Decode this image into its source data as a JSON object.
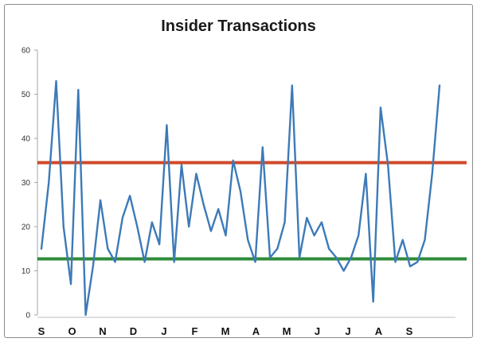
{
  "chart_data": {
    "type": "line",
    "title": "Insider Transactions",
    "xlabel": "",
    "ylabel": "",
    "ylim": [
      0,
      60
    ],
    "yticks": [
      "0",
      "10",
      "20",
      "30",
      "40",
      "50",
      "60"
    ],
    "month_labels": [
      "S",
      "O",
      "N",
      "D",
      "J",
      "F",
      "M",
      "A",
      "M",
      "J",
      "J",
      "A",
      "S"
    ],
    "series": [
      {
        "color": "#3d7ab8",
        "values": [
          15,
          30,
          53,
          20,
          7,
          51,
          0,
          11,
          26,
          15,
          12,
          22,
          27,
          20,
          12,
          21,
          16,
          43,
          12,
          34,
          20,
          32,
          25,
          19,
          24,
          18,
          35,
          28,
          17,
          12,
          38,
          13,
          15,
          21,
          52,
          13,
          22,
          18,
          21,
          15,
          13,
          10,
          13,
          18,
          32,
          3,
          47,
          34,
          12,
          17,
          11,
          12,
          17,
          32,
          52
        ]
      }
    ],
    "reference_lines": [
      {
        "value": 34.5,
        "color": "#d0492a"
      },
      {
        "value": 12.7,
        "color": "#2e8b3a"
      }
    ],
    "grid": false,
    "legend": "none"
  }
}
